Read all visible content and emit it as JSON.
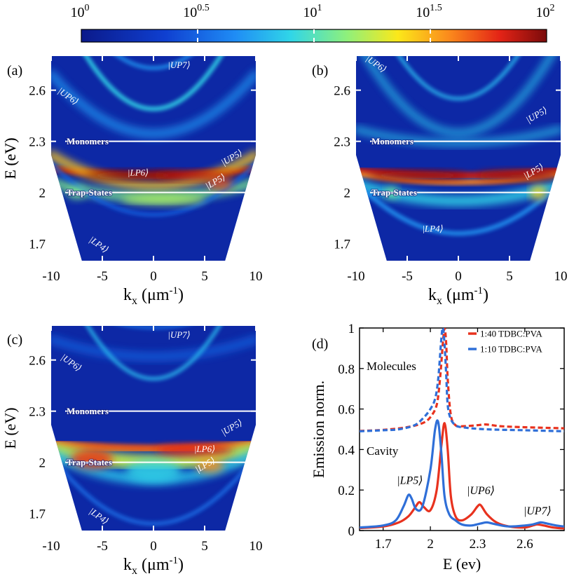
{
  "colorbar": {
    "tick_labels": [
      "10^0",
      "10^0.5",
      "10^1",
      "10^1.5",
      "10^2"
    ],
    "tick_base": "10",
    "tick_exponents": [
      "0",
      "0.5",
      "1",
      "1.5",
      "2"
    ],
    "range_log10": [
      0,
      2
    ],
    "colormap": "jet"
  },
  "chart_data": [
    {
      "type": "heatmap",
      "panel": "(a)",
      "xlabel": "k_x (μm^-1)",
      "xlabel_main": "k",
      "xlabel_sub": "x",
      "xlabel_unit": " (μm",
      "xlabel_sup": "-1",
      "xlabel_close": ")",
      "ylabel": "E (eV)",
      "xlim": [
        -10,
        10
      ],
      "ylim": [
        1.6,
        2.8
      ],
      "xticks": [
        -10,
        -5,
        0,
        5,
        10
      ],
      "yticks": [
        1.7,
        2,
        2.3,
        2.6
      ],
      "ytick_labels": [
        "1.7",
        "2",
        "2.3",
        "2.6"
      ],
      "reference_lines": [
        {
          "label": "Monomers",
          "E": 2.3
        },
        {
          "label": "Trap-States",
          "E": 2.0
        }
      ],
      "annotations": [
        {
          "text": "|UP7⟩",
          "k": 2.5,
          "E": 2.73
        },
        {
          "text": "|UP6⟩",
          "k": -8.5,
          "E": 2.55
        },
        {
          "text": "|UP5⟩",
          "k": 7.8,
          "E": 2.19
        },
        {
          "text": "|LP6⟩",
          "k": -1.5,
          "E": 2.1
        },
        {
          "text": "|LP5⟩",
          "k": 6.2,
          "E": 2.05
        },
        {
          "text": "|LP4⟩",
          "k": -5.5,
          "E": 1.68
        }
      ]
    },
    {
      "type": "heatmap",
      "panel": "(b)",
      "xlabel": "k_x (μm^-1)",
      "xlabel_main": "k",
      "xlabel_sub": "x",
      "xlabel_unit": " (μm",
      "xlabel_sup": "-1",
      "xlabel_close": ")",
      "ylabel": "E (eV)",
      "xlim": [
        -10,
        10
      ],
      "ylim": [
        1.6,
        2.8
      ],
      "xticks": [
        -10,
        -5,
        0,
        5,
        10
      ],
      "yticks": [
        1.7,
        2,
        2.3,
        2.6
      ],
      "ytick_labels": [
        "1.7",
        "2",
        "2.3",
        "2.6"
      ],
      "reference_lines": [
        {
          "label": "Monomers",
          "E": 2.3
        },
        {
          "label": "Trap-States",
          "E": 2.0
        }
      ],
      "annotations": [
        {
          "text": "|UP6⟩",
          "k": -8.2,
          "E": 2.74
        },
        {
          "text": "|UP5⟩",
          "k": 7.8,
          "E": 2.44
        },
        {
          "text": "|LP5⟩",
          "k": 7.5,
          "E": 2.11
        },
        {
          "text": "|LP4⟩",
          "k": -2.5,
          "E": 1.77
        }
      ]
    },
    {
      "type": "heatmap",
      "panel": "(c)",
      "xlabel": "k_x (μm^-1)",
      "xlabel_main": "k",
      "xlabel_sub": "x",
      "xlabel_unit": " (μm",
      "xlabel_sup": "-1",
      "xlabel_close": ")",
      "ylabel": "E (eV)",
      "xlim": [
        -10,
        10
      ],
      "ylim": [
        1.6,
        2.8
      ],
      "xticks": [
        -10,
        -5,
        0,
        5,
        10
      ],
      "yticks": [
        1.7,
        2,
        2.3,
        2.6
      ],
      "ytick_labels": [
        "1.7",
        "2",
        "2.3",
        "2.6"
      ],
      "reference_lines": [
        {
          "label": "Monomers",
          "E": 2.3
        },
        {
          "label": "Trap-States",
          "E": 2.0
        }
      ],
      "annotations": [
        {
          "text": "|UP7⟩",
          "k": 2.5,
          "E": 2.73
        },
        {
          "text": "|UP6⟩",
          "k": -8.2,
          "E": 2.57
        },
        {
          "text": "|UP5⟩",
          "k": 7.8,
          "E": 2.19
        },
        {
          "text": "|LP6⟩",
          "k": 5.0,
          "E": 2.06
        },
        {
          "text": "|LP5⟩",
          "k": 5.2,
          "E": 1.97
        },
        {
          "text": "|LP4⟩",
          "k": -5.5,
          "E": 1.67
        }
      ]
    },
    {
      "type": "line",
      "panel": "(d)",
      "xlabel": "E (ev)",
      "ylabel": "Emission norm.",
      "xlim": [
        1.55,
        2.85
      ],
      "ylim": [
        0,
        1
      ],
      "xticks": [
        1.7,
        2,
        2.3,
        2.6
      ],
      "xtick_labels": [
        "1.7",
        "2",
        "2.3",
        "2.6"
      ],
      "yticks": [
        0,
        0.2,
        0.4,
        0.6,
        0.8,
        1
      ],
      "ytick_labels": [
        "0",
        "0.2",
        "0.4",
        "0.6",
        "0.8",
        "1"
      ],
      "legend": [
        "1:40 TDBC:PVA",
        "1:10 TDBC:PVA"
      ],
      "text_labels": {
        "molecules": "Molecules",
        "cavity": "Cavity"
      },
      "peak_labels": [
        {
          "text": "|LP5⟩",
          "E": 1.87,
          "y": 0.23
        },
        {
          "text": "|UP6⟩",
          "E": 2.32,
          "y": 0.18
        },
        {
          "text": "|UP7⟩",
          "E": 2.68,
          "y": 0.08
        }
      ],
      "series": [
        {
          "name": "1:40 TDBC:PVA",
          "group": "Molecules",
          "style": "dashed",
          "color": "#e8321e",
          "x": [
            1.55,
            1.7,
            1.85,
            1.95,
            2.0,
            2.04,
            2.06,
            2.08,
            2.09,
            2.1,
            2.11,
            2.13,
            2.16,
            2.2,
            2.3,
            2.35,
            2.45,
            2.6,
            2.85
          ],
          "y": [
            0.492,
            0.497,
            0.51,
            0.53,
            0.56,
            0.62,
            0.74,
            0.93,
            1.0,
            0.93,
            0.75,
            0.57,
            0.52,
            0.515,
            0.52,
            0.524,
            0.515,
            0.51,
            0.505
          ]
        },
        {
          "name": "1:10 TDBC:PVA",
          "group": "Molecules",
          "style": "dashed",
          "color": "#2f6fd8",
          "x": [
            1.55,
            1.7,
            1.8,
            1.9,
            1.96,
            2.0,
            2.03,
            2.05,
            2.07,
            2.08,
            2.09,
            2.1,
            2.11,
            2.13,
            2.16,
            2.2,
            2.35,
            2.6,
            2.85
          ],
          "y": [
            0.49,
            0.495,
            0.5,
            0.52,
            0.56,
            0.6,
            0.65,
            0.75,
            0.95,
            1.0,
            0.92,
            0.78,
            0.62,
            0.55,
            0.52,
            0.51,
            0.5,
            0.495,
            0.49
          ]
        },
        {
          "name": "1:40 TDBC:PVA",
          "group": "Cavity",
          "style": "solid",
          "color": "#e8321e",
          "x": [
            1.55,
            1.7,
            1.8,
            1.86,
            1.9,
            1.93,
            1.96,
            2.0,
            2.04,
            2.07,
            2.09,
            2.11,
            2.13,
            2.16,
            2.2,
            2.26,
            2.3,
            2.32,
            2.36,
            2.42,
            2.5,
            2.6,
            2.65,
            2.68,
            2.72,
            2.78,
            2.85
          ],
          "y": [
            0.012,
            0.02,
            0.04,
            0.07,
            0.11,
            0.14,
            0.115,
            0.1,
            0.2,
            0.42,
            0.53,
            0.4,
            0.17,
            0.07,
            0.05,
            0.08,
            0.12,
            0.125,
            0.08,
            0.04,
            0.02,
            0.015,
            0.025,
            0.03,
            0.025,
            0.015,
            0.01
          ]
        },
        {
          "name": "1:10 TDBC:PVA",
          "group": "Cavity",
          "style": "solid",
          "color": "#2f6fd8",
          "x": [
            1.55,
            1.7,
            1.78,
            1.83,
            1.86,
            1.88,
            1.91,
            1.95,
            2.0,
            2.03,
            2.05,
            2.07,
            2.09,
            2.12,
            2.16,
            2.2,
            2.26,
            2.32,
            2.36,
            2.42,
            2.5,
            2.6,
            2.65,
            2.7,
            2.74,
            2.8,
            2.85
          ],
          "y": [
            0.015,
            0.025,
            0.05,
            0.12,
            0.175,
            0.16,
            0.105,
            0.12,
            0.3,
            0.5,
            0.535,
            0.38,
            0.17,
            0.08,
            0.05,
            0.03,
            0.025,
            0.035,
            0.04,
            0.03,
            0.02,
            0.025,
            0.03,
            0.04,
            0.035,
            0.025,
            0.02
          ]
        }
      ]
    }
  ]
}
